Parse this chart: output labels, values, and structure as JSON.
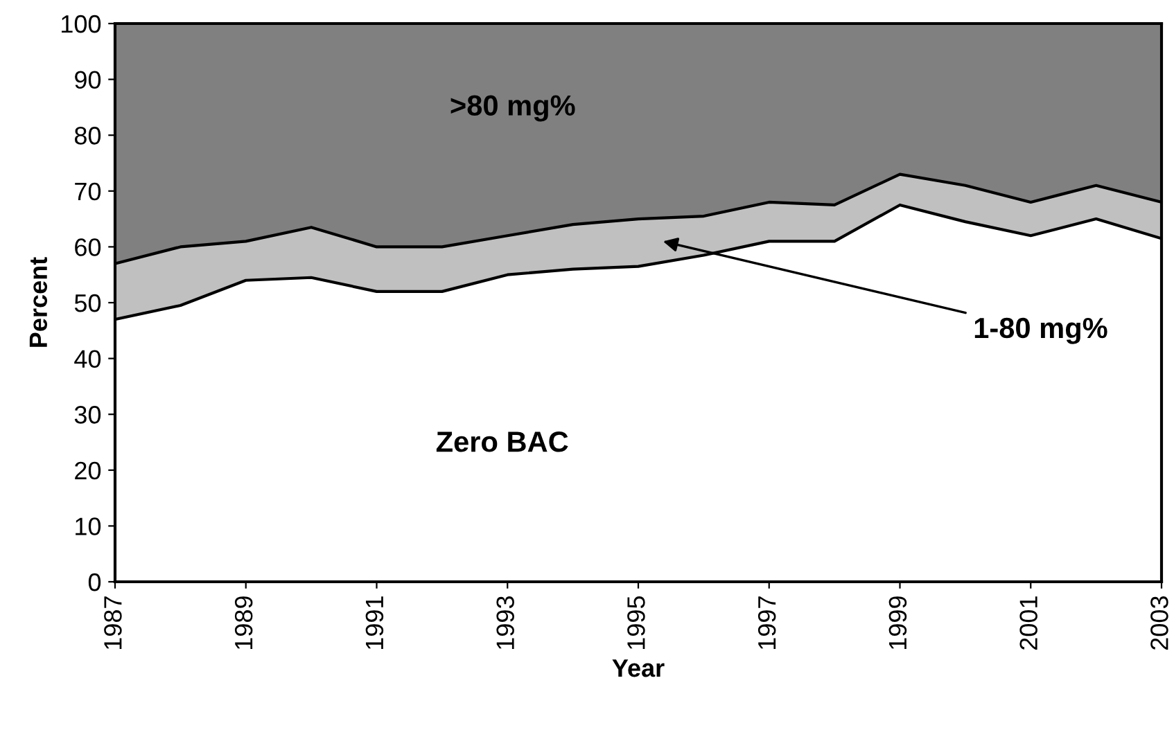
{
  "chart_data": {
    "type": "area",
    "stacked": true,
    "xlabel": "Year",
    "ylabel": "Percent",
    "x": [
      1987,
      1988,
      1989,
      1990,
      1991,
      1992,
      1993,
      1994,
      1995,
      1996,
      1997,
      1998,
      1999,
      2000,
      2001,
      2002,
      2003
    ],
    "xlim": [
      1987,
      2003
    ],
    "xticks": [
      1987,
      1989,
      1991,
      1993,
      1995,
      1997,
      1999,
      2001,
      2003
    ],
    "ylim": [
      0,
      100
    ],
    "yticks": [
      0,
      10,
      20,
      30,
      40,
      50,
      60,
      70,
      80,
      90,
      100
    ],
    "grid": false,
    "legend": false,
    "series": [
      {
        "name": "Zero BAC",
        "color": "#ffffff",
        "values": [
          47,
          49.5,
          54,
          54.5,
          52,
          52,
          55,
          56,
          56.5,
          58.5,
          61,
          61,
          67.5,
          64.5,
          62,
          65,
          61.5
        ]
      },
      {
        "name": "1-80 mg%",
        "color": "#c0c0c0",
        "values": [
          10,
          10.5,
          7,
          9,
          8,
          8,
          7,
          8,
          8.5,
          7,
          7,
          6.5,
          5.5,
          6.5,
          6,
          6,
          6.5
        ]
      },
      {
        "name": ">80 mg%",
        "color": "#808080",
        "values": [
          43,
          40,
          39,
          36.5,
          40,
          40,
          38,
          36,
          35,
          34.5,
          32,
          32.5,
          27,
          29,
          32,
          29,
          32
        ]
      }
    ]
  }
}
